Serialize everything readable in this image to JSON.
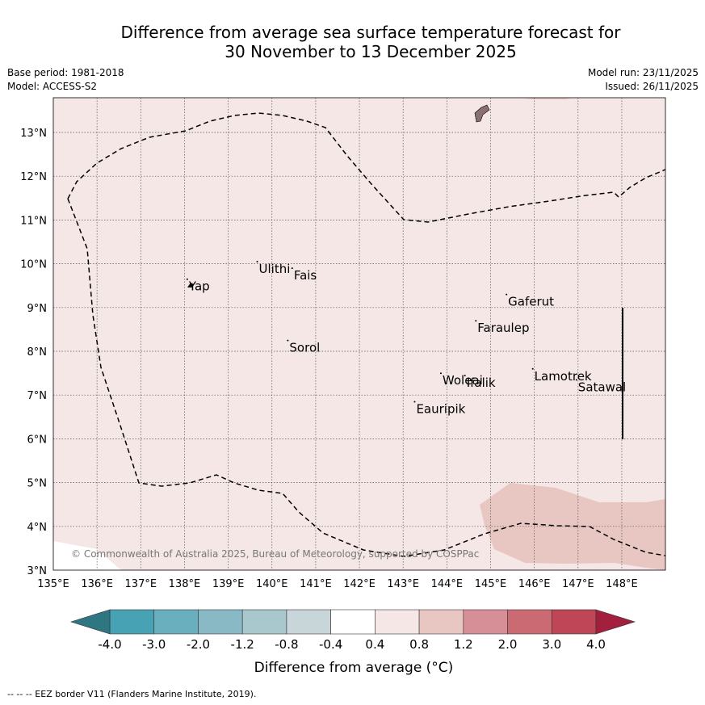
{
  "header": {
    "title_line1": "Difference from average sea surface temperature forecast for",
    "title_line2": "30 November to 13 December 2025",
    "base_period": "Base period: 1981-2018",
    "model": "Model: ACCESS-S2",
    "model_run": "Model run: 23/11/2025",
    "issued": "Issued: 26/11/2025"
  },
  "map": {
    "lon_ticks": [
      "135°E",
      "136°E",
      "137°E",
      "138°E",
      "139°E",
      "140°E",
      "141°E",
      "142°E",
      "143°E",
      "144°E",
      "145°E",
      "146°E",
      "147°E",
      "148°E"
    ],
    "lat_ticks": [
      "3°N",
      "4°N",
      "5°N",
      "6°N",
      "7°N",
      "8°N",
      "9°N",
      "10°N",
      "11°N",
      "12°N",
      "13°N"
    ],
    "places": [
      {
        "name": "Yap",
        "lon": 138.1,
        "lat": 9.5
      },
      {
        "name": "Ulithi",
        "lon": 139.7,
        "lat": 9.9
      },
      {
        "name": "Fais",
        "lon": 140.5,
        "lat": 9.75
      },
      {
        "name": "Gaferut",
        "lon": 145.4,
        "lat": 9.15
      },
      {
        "name": "Faraulep",
        "lon": 144.7,
        "lat": 8.55
      },
      {
        "name": "Sorol",
        "lon": 140.4,
        "lat": 8.1
      },
      {
        "name": "Woleai",
        "lon": 143.9,
        "lat": 7.35
      },
      {
        "name": "Ifalik",
        "lon": 144.45,
        "lat": 7.3
      },
      {
        "name": "Lamotrek",
        "lon": 146.0,
        "lat": 7.45
      },
      {
        "name": "Satawal",
        "lon": 147.0,
        "lat": 7.2
      },
      {
        "name": "Eauripik",
        "lon": 143.3,
        "lat": 6.7
      }
    ],
    "copyright": "© Commonwealth of Australia 2025, Bureau of Meteorology, supported by COSPPac"
  },
  "colorbar": {
    "labels": [
      "-4.0",
      "-3.0",
      "-2.0",
      "-1.2",
      "-0.8",
      "-0.4",
      "0.4",
      "0.8",
      "1.2",
      "2.0",
      "3.0",
      "4.0"
    ],
    "colors": [
      "#47a2b3",
      "#6aafbd",
      "#88b9c5",
      "#a8c8ce",
      "#c8d6da",
      "#ffffff",
      "#f4e7e6",
      "#e8c6c2",
      "#d68f96",
      "#cc6a74",
      "#bf4656"
    ],
    "under_color": "#2f7683",
    "over_color": "#a21f3d",
    "label": "Difference from average (°C)"
  },
  "colors": {
    "background_anomaly": "#f4e7e6",
    "warm_patch": "#e8c6c2",
    "land": "#8a7070"
  },
  "footer": "--  --  -- EEZ border V11 (Flanders Marine Institute, 2019)."
}
